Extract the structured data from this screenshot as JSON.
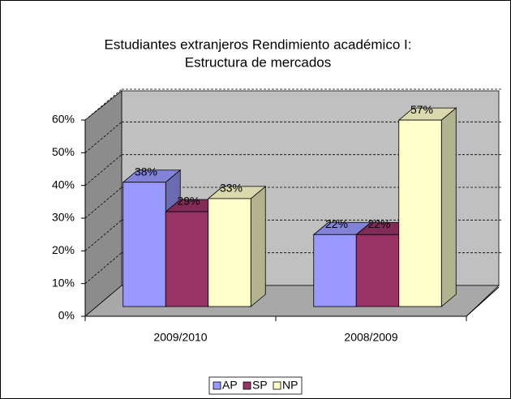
{
  "chart_data": {
    "type": "bar3d",
    "title": [
      "Estudiantes extranjeros  Rendimiento  académico I:",
      "Estructura de mercados"
    ],
    "categories": [
      "2009/2010",
      "2008/2009"
    ],
    "series": [
      {
        "name": "AP",
        "color": "#9999ff",
        "values": [
          38,
          22
        ],
        "value_labels": [
          "38%",
          "22%"
        ]
      },
      {
        "name": "SP",
        "color": "#993366",
        "values": [
          29,
          22
        ],
        "value_labels": [
          "29%",
          "22%"
        ]
      },
      {
        "name": "NP",
        "color": "#ffffcc",
        "values": [
          33,
          57
        ],
        "value_labels": [
          "33%",
          "57%"
        ]
      }
    ],
    "ylim": [
      0,
      60
    ],
    "yticks": [
      {
        "value": 0,
        "label": "0%"
      },
      {
        "value": 10,
        "label": "10%"
      },
      {
        "value": 20,
        "label": "20%"
      },
      {
        "value": 30,
        "label": "30%"
      },
      {
        "value": 40,
        "label": "40%"
      },
      {
        "value": 50,
        "label": "50%"
      },
      {
        "value": 60,
        "label": "60%"
      }
    ],
    "grid": true,
    "legend": "bottom"
  }
}
